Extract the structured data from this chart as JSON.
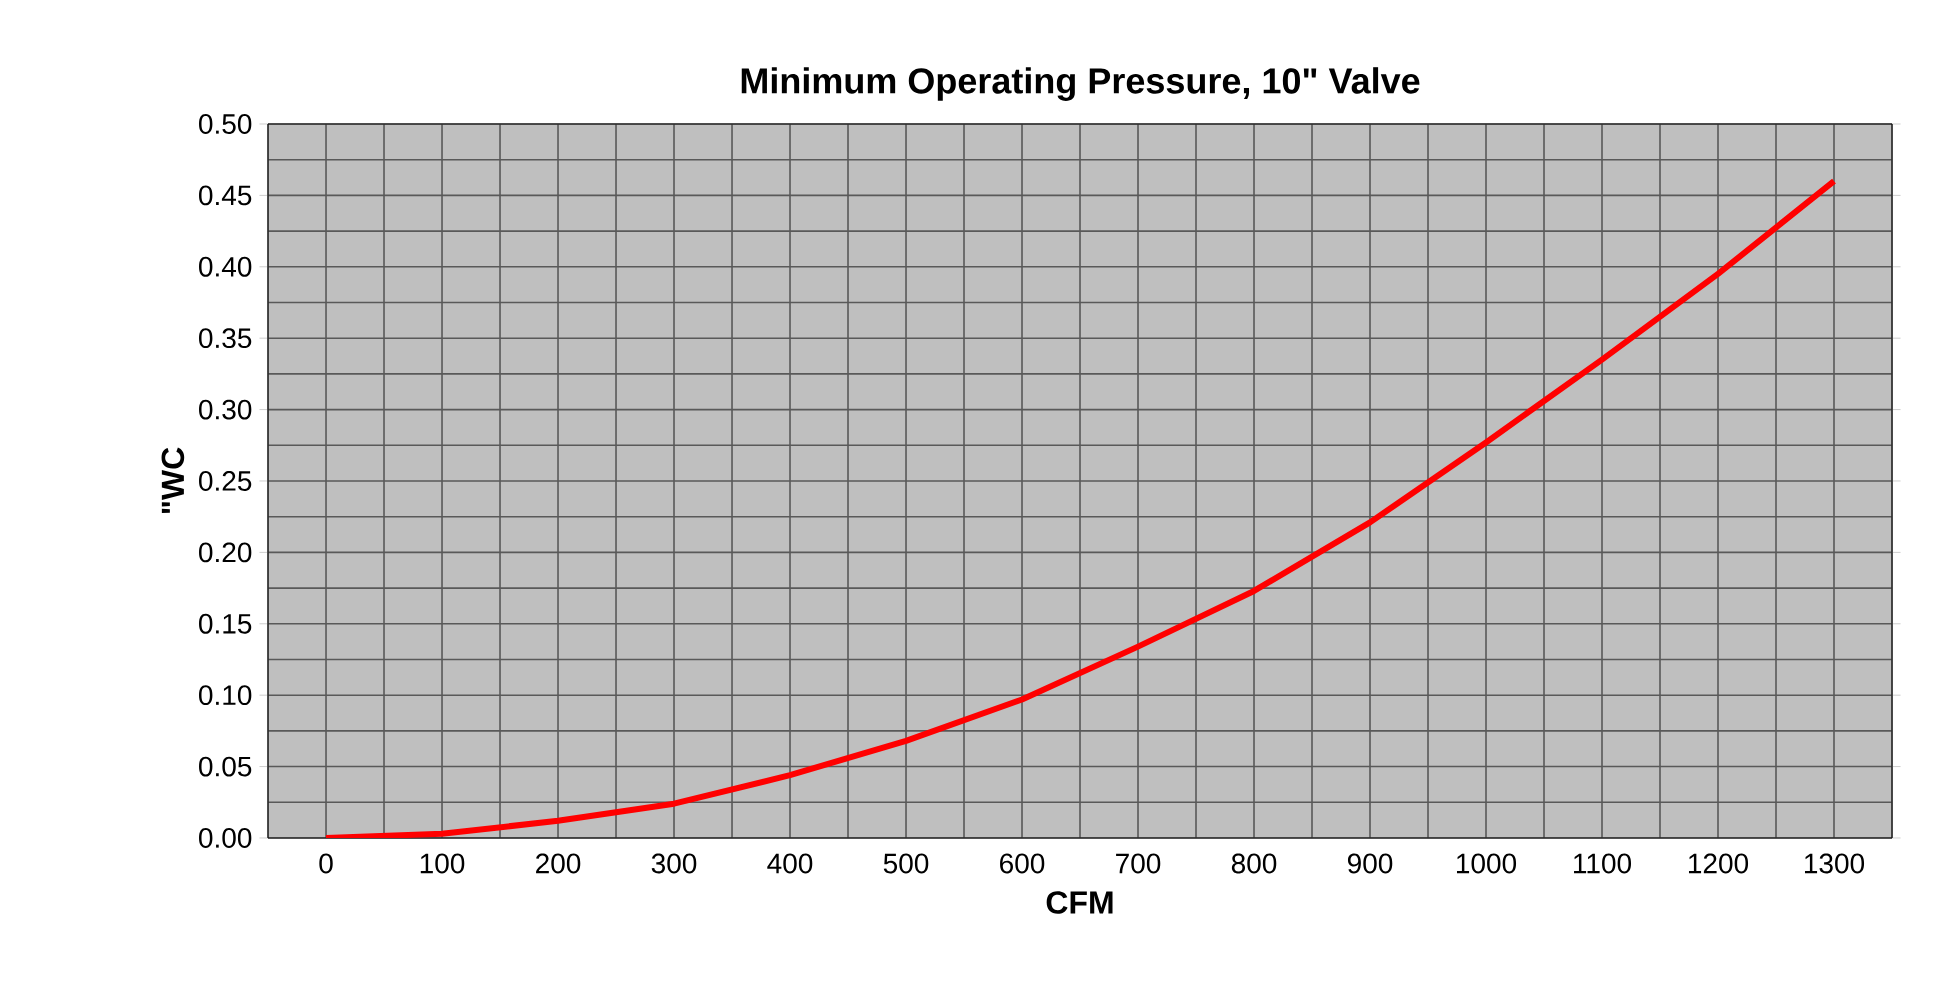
{
  "chart_data": {
    "type": "line",
    "title": "Minimum Operating Pressure, 10\" Valve",
    "xlabel": "CFM",
    "ylabel": "\"WC",
    "categories": [
      "0",
      "100",
      "200",
      "300",
      "400",
      "500",
      "600",
      "700",
      "800",
      "900",
      "1000",
      "1100",
      "1200",
      "1300"
    ],
    "series": [
      {
        "color": "#ff0000",
        "values": [
          0.0,
          0.003,
          0.012,
          0.024,
          0.044,
          0.068,
          0.097,
          0.134,
          0.173,
          0.221,
          0.277,
          0.335,
          0.395,
          0.46
        ]
      }
    ],
    "ylim": [
      0,
      0.5
    ],
    "yticks": [
      {
        "value": 0,
        "label": "0.00"
      },
      {
        "value": 0.05,
        "label": "0.05"
      },
      {
        "value": 0.1,
        "label": "0.10"
      },
      {
        "value": 0.15,
        "label": "0.15"
      },
      {
        "value": 0.2,
        "label": "0.20"
      },
      {
        "value": 0.25,
        "label": "0.25"
      },
      {
        "value": 0.3,
        "label": "0.30"
      },
      {
        "value": 0.35,
        "label": "0.35"
      },
      {
        "value": 0.4,
        "label": "0.40"
      },
      {
        "value": 0.45,
        "label": "0.45"
      },
      {
        "value": 0.5,
        "label": "0.50"
      }
    ],
    "grid": true,
    "marker": "none",
    "line_style": "solid"
  }
}
